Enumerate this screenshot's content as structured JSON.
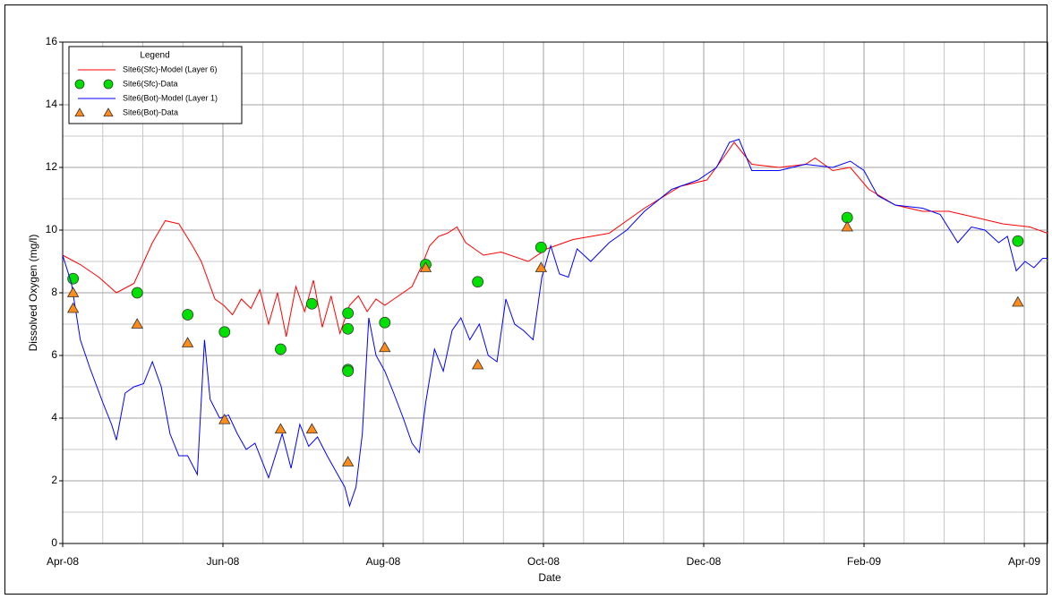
{
  "chart_data": {
    "type": "line",
    "xlabel": "Date",
    "ylabel": "Dissolved Oxygen (mg/l)",
    "legend_title": "Legend",
    "legend": "upper left",
    "grid": true,
    "xlim": [
      0,
      12.29
    ],
    "xticks": [
      {
        "value": 0,
        "label": "Apr-08"
      },
      {
        "value": 2,
        "label": "Jun-08"
      },
      {
        "value": 4,
        "label": "Aug-08"
      },
      {
        "value": 6,
        "label": "Oct-08"
      },
      {
        "value": 8,
        "label": "Dec-08"
      },
      {
        "value": 10,
        "label": "Feb-09"
      },
      {
        "value": 12,
        "label": "Apr-09"
      }
    ],
    "ylim": [
      0,
      16
    ],
    "yticks": [
      0,
      2,
      4,
      6,
      8,
      10,
      12,
      14,
      16
    ],
    "series": [
      {
        "name": "Site6(Sfc)-Model (Layer 6)",
        "type": "line",
        "color": "#ff0000",
        "x": [
          0,
          0.22,
          0.45,
          0.67,
          0.89,
          1.12,
          1.28,
          1.45,
          1.62,
          1.73,
          1.9,
          2.01,
          2.12,
          2.23,
          2.35,
          2.46,
          2.57,
          2.68,
          2.79,
          2.91,
          3.02,
          3.13,
          3.24,
          3.35,
          3.46,
          3.58,
          3.69,
          3.8,
          3.91,
          4.02,
          4.19,
          4.36,
          4.47,
          4.58,
          4.69,
          4.8,
          4.92,
          5.03,
          5.14,
          5.25,
          5.47,
          5.81,
          6.04,
          6.37,
          6.82,
          7.26,
          7.71,
          8.04,
          8.27,
          8.38,
          8.6,
          8.94,
          9.27,
          9.39,
          9.61,
          9.83,
          10.06,
          10.39,
          10.73,
          11.06,
          11.4,
          11.73,
          12.07,
          12.29
        ],
        "values": [
          9.2,
          8.9,
          8.5,
          8.0,
          8.3,
          9.6,
          10.3,
          10.2,
          9.5,
          9.0,
          7.8,
          7.6,
          7.3,
          7.8,
          7.5,
          8.1,
          7.0,
          8.0,
          6.6,
          8.2,
          7.4,
          8.4,
          6.9,
          7.9,
          6.7,
          7.6,
          7.9,
          7.4,
          7.8,
          7.6,
          7.9,
          8.2,
          8.8,
          9.5,
          9.8,
          9.9,
          10.1,
          9.6,
          9.4,
          9.2,
          9.3,
          9.0,
          9.4,
          9.7,
          9.9,
          10.7,
          11.4,
          11.6,
          12.4,
          12.8,
          12.1,
          12.0,
          12.1,
          12.3,
          11.9,
          12.0,
          11.3,
          10.8,
          10.6,
          10.6,
          10.4,
          10.2,
          10.1,
          9.9
        ]
      },
      {
        "name": "Site6(Sfc)-Data",
        "type": "scatter",
        "marker": "circle",
        "color": "#00e000",
        "x": [
          0.13,
          0.93,
          1.56,
          2.02,
          2.72,
          3.11,
          3.56,
          3.56,
          3.56,
          3.56,
          4.02,
          4.53,
          5.18,
          5.97,
          9.79,
          11.92
        ],
        "values": [
          8.45,
          8.0,
          7.3,
          6.75,
          6.2,
          7.65,
          7.35,
          6.85,
          5.55,
          5.5,
          7.05,
          8.9,
          8.35,
          9.45,
          10.4,
          9.65
        ]
      },
      {
        "name": "Site6(Bot)-Model (Layer 1)",
        "type": "line",
        "color": "#0000ff",
        "x": [
          0,
          0.11,
          0.22,
          0.34,
          0.5,
          0.61,
          0.67,
          0.78,
          0.89,
          1.01,
          1.12,
          1.23,
          1.34,
          1.45,
          1.56,
          1.68,
          1.77,
          1.84,
          1.96,
          2.07,
          2.18,
          2.29,
          2.4,
          2.57,
          2.74,
          2.85,
          2.96,
          3.07,
          3.18,
          3.3,
          3.41,
          3.52,
          3.58,
          3.66,
          3.74,
          3.82,
          3.91,
          4.02,
          4.13,
          4.25,
          4.36,
          4.45,
          4.53,
          4.64,
          4.75,
          4.86,
          4.97,
          5.08,
          5.2,
          5.31,
          5.42,
          5.53,
          5.64,
          5.75,
          5.87,
          5.98,
          6.09,
          6.2,
          6.31,
          6.42,
          6.59,
          6.82,
          7.04,
          7.26,
          7.6,
          7.93,
          8.16,
          8.32,
          8.44,
          8.6,
          8.94,
          9.27,
          9.61,
          9.83,
          10.0,
          10.17,
          10.39,
          10.73,
          10.95,
          11.17,
          11.34,
          11.51,
          11.68,
          11.79,
          11.9,
          12.01,
          12.12,
          12.23,
          12.29
        ],
        "values": [
          9.2,
          8.3,
          6.5,
          5.6,
          4.5,
          3.8,
          3.3,
          4.8,
          5.0,
          5.1,
          5.8,
          5.0,
          3.5,
          2.8,
          2.8,
          2.2,
          6.5,
          4.6,
          4.0,
          4.1,
          3.5,
          3.0,
          3.2,
          2.1,
          3.5,
          2.4,
          3.8,
          3.1,
          3.4,
          2.8,
          2.3,
          1.8,
          1.2,
          1.8,
          3.5,
          7.2,
          6.0,
          5.5,
          4.8,
          4.0,
          3.2,
          2.9,
          4.5,
          6.2,
          5.5,
          6.8,
          7.2,
          6.5,
          7.0,
          6.0,
          5.8,
          7.8,
          7.0,
          6.8,
          6.5,
          8.5,
          9.5,
          8.6,
          8.5,
          9.4,
          9.0,
          9.6,
          10.0,
          10.6,
          11.3,
          11.6,
          12.0,
          12.8,
          12.9,
          11.9,
          11.9,
          12.1,
          12.0,
          12.2,
          11.9,
          11.1,
          10.8,
          10.7,
          10.5,
          9.6,
          10.1,
          10.0,
          9.6,
          9.8,
          8.7,
          9.0,
          8.8,
          9.1,
          9.1
        ]
      },
      {
        "name": "Site6(Bot)-Data",
        "type": "scatter",
        "marker": "triangle",
        "color": "#ff8c1a",
        "x": [
          0.13,
          0.13,
          0.93,
          1.56,
          2.02,
          2.72,
          3.11,
          3.56,
          4.02,
          4.53,
          5.18,
          5.97,
          9.79,
          11.92
        ],
        "values": [
          8.0,
          7.5,
          7.0,
          6.4,
          3.95,
          3.65,
          3.65,
          2.6,
          6.25,
          8.8,
          5.7,
          8.8,
          10.1,
          7.7
        ]
      }
    ]
  }
}
